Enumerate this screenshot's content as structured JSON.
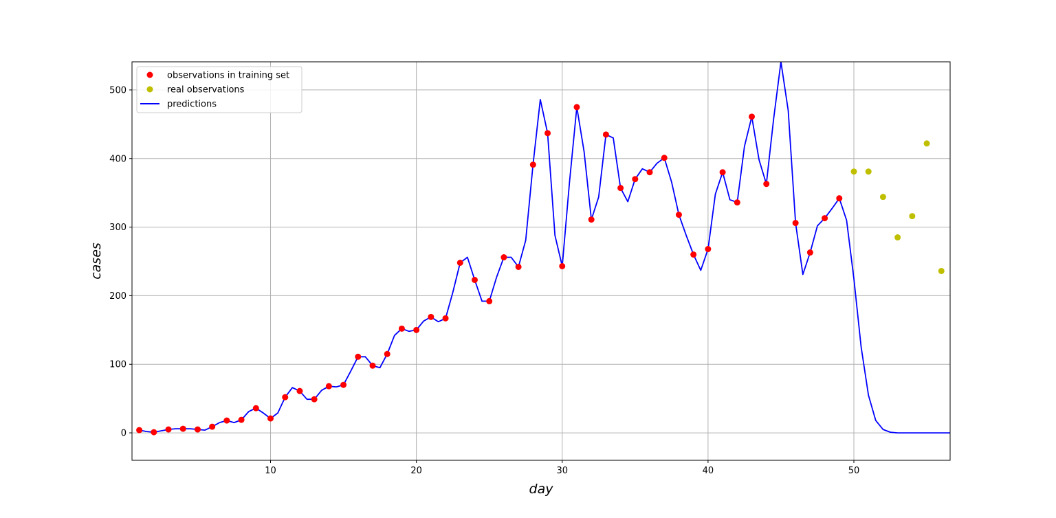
{
  "chart_data": {
    "type": "line",
    "title": "",
    "xlabel": "day",
    "ylabel": "cases",
    "xlim": [
      0.5,
      56.6
    ],
    "ylim": [
      -40,
      541
    ],
    "xticks": [
      10,
      20,
      30,
      40,
      50
    ],
    "yticks": [
      0,
      100,
      200,
      300,
      400,
      500
    ],
    "grid": true,
    "legend_position": "top-left",
    "colors": {
      "training": "#ff0000",
      "real": "#bfbf00",
      "predictions": "#0000ff",
      "grid": "#b0b0b0",
      "frame": "#000000"
    },
    "series": [
      {
        "name": "observations in training set",
        "kind": "scatter",
        "x": [
          1,
          2,
          3,
          4,
          5,
          6,
          7,
          8,
          9,
          10,
          11,
          12,
          13,
          14,
          15,
          16,
          17,
          18,
          19,
          20,
          21,
          22,
          23,
          24,
          25,
          26,
          27,
          28,
          29,
          30,
          31,
          32,
          33,
          34,
          35,
          36,
          37,
          38,
          39,
          40,
          41,
          42,
          43,
          44,
          45,
          46,
          47,
          48,
          49
        ],
        "y": [
          4,
          1,
          5,
          6,
          5,
          9,
          18,
          19,
          36,
          21,
          52,
          61,
          49,
          68,
          70,
          111,
          98,
          115,
          152,
          150,
          169,
          167,
          248,
          223,
          192,
          256,
          242,
          391,
          437,
          243,
          475,
          311,
          435,
          357,
          370,
          380,
          401,
          318,
          260,
          268,
          380,
          336,
          461,
          363,
          null,
          306,
          263,
          313,
          342
        ]
      },
      {
        "name": "real observations",
        "kind": "scatter",
        "x": [
          50,
          51,
          52,
          53,
          54,
          55,
          56
        ],
        "y": [
          381,
          381,
          344,
          285,
          316,
          422,
          236
        ]
      },
      {
        "name": "predictions",
        "kind": "line",
        "x": [
          1,
          1.5,
          2,
          2.5,
          3,
          3.5,
          4,
          4.5,
          5,
          5.5,
          6,
          6.5,
          7,
          7.5,
          8,
          8.5,
          9,
          9.5,
          10,
          10.5,
          11,
          11.5,
          12,
          12.5,
          13,
          13.5,
          14,
          14.5,
          15,
          15.5,
          16,
          16.5,
          17,
          17.5,
          18,
          18.5,
          19,
          19.5,
          20,
          20.5,
          21,
          21.5,
          22,
          22.5,
          23,
          23.5,
          24,
          24.5,
          25,
          25.5,
          26,
          26.5,
          27,
          27.5,
          28,
          28.5,
          29,
          29.5,
          30,
          30.5,
          31,
          31.5,
          32,
          32.5,
          33,
          33.5,
          34,
          34.5,
          35,
          35.5,
          36,
          36.5,
          37,
          37.5,
          38,
          38.5,
          39,
          39.5,
          40,
          40.5,
          41,
          41.5,
          42,
          42.5,
          43,
          43.5,
          44,
          44.5,
          45,
          45.5,
          46,
          46.5,
          47,
          47.5,
          48,
          48.5,
          49,
          49.5,
          50,
          50.5,
          51,
          51.5,
          52,
          52.5,
          53,
          54,
          55,
          56,
          56.6
        ],
        "y": [
          4,
          2,
          1,
          3,
          5,
          6,
          6,
          6,
          5,
          4,
          9,
          15,
          18,
          15,
          19,
          31,
          36,
          29,
          21,
          29,
          52,
          66,
          61,
          49,
          49,
          62,
          68,
          67,
          70,
          90,
          111,
          111,
          98,
          95,
          115,
          142,
          152,
          148,
          150,
          163,
          169,
          162,
          167,
          205,
          248,
          256,
          223,
          192,
          192,
          227,
          256,
          256,
          242,
          281,
          391,
          486,
          437,
          288,
          243,
          366,
          475,
          410,
          311,
          344,
          435,
          430,
          357,
          337,
          370,
          385,
          380,
          393,
          401,
          366,
          318,
          288,
          260,
          237,
          268,
          348,
          380,
          340,
          336,
          418,
          461,
          398,
          363,
          458,
          541,
          470,
          306,
          231,
          263,
          302,
          313,
          327,
          342,
          310,
          225,
          125,
          55,
          18,
          5,
          1,
          0,
          0,
          0,
          0,
          0
        ]
      }
    ]
  }
}
